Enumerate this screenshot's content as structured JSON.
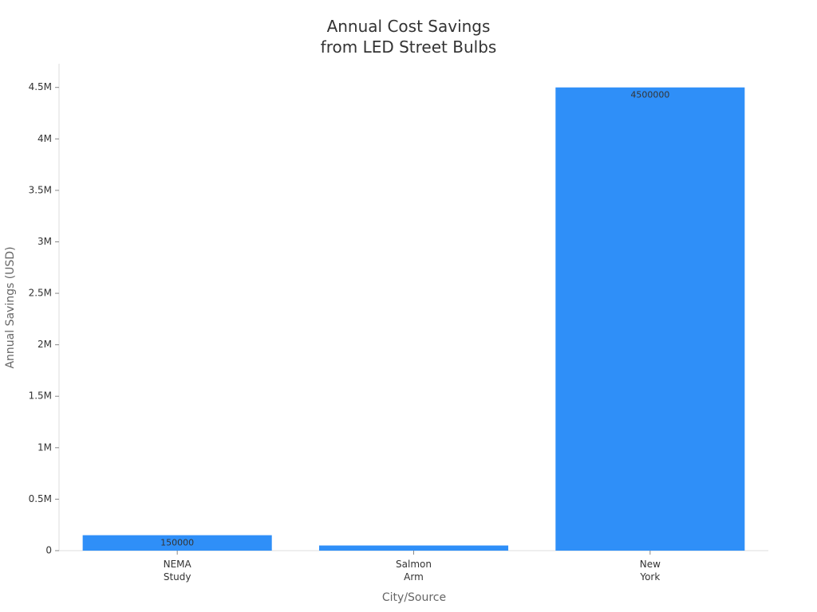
{
  "chart_data": {
    "type": "bar",
    "title": "Annual Cost Savings from LED Street Bulbs",
    "x_label": "City/Source",
    "y_label": "Annual Savings (USD)",
    "categories": [
      "NEMA Study",
      "Salmon Arm",
      "New York"
    ],
    "values": [
      150000,
      50000,
      4500000
    ],
    "color": "#2f8ff8",
    "ylim": [
      0,
      4730000
    ],
    "yticks": [
      0,
      {
        "value": 500000,
        "label": "0.5M"
      },
      {
        "value": 1000000,
        "label": "1M"
      },
      {
        "value": 1500000,
        "label": "1.5M"
      },
      {
        "value": 2000000,
        "label": "2M"
      },
      {
        "value": 2500000,
        "label": "2.5M"
      },
      {
        "value": 3000000,
        "label": "3M"
      },
      {
        "value": 3500000,
        "label": "3.5M"
      },
      {
        "value": 4000000,
        "label": "4M"
      },
      {
        "value": 4500000,
        "label": "4.5M"
      }
    ],
    "grid": false
  }
}
